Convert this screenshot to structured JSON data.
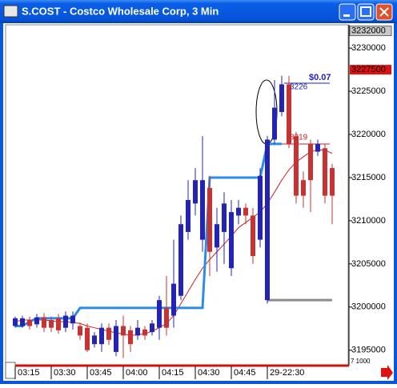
{
  "window": {
    "title": "S.COST - Costco Wholesale Corp, 3 Min"
  },
  "chart_data": {
    "type": "candlestick",
    "categories": [
      "03:15",
      null,
      null,
      null,
      null,
      "03:30",
      null,
      null,
      null,
      null,
      "03:45",
      null,
      null,
      null,
      null,
      "04:00",
      null,
      null,
      null,
      null,
      "04:15",
      null,
      null,
      null,
      null,
      "04:30",
      null,
      null,
      null,
      null,
      "04:45",
      null,
      null,
      null,
      null,
      "29-22:30",
      null,
      null,
      null,
      null,
      null,
      null,
      null,
      null,
      null
    ],
    "candles": [
      [
        3197800,
        3198900,
        3197600,
        3198700
      ],
      [
        3197800,
        3199000,
        3197600,
        3198700
      ],
      [
        3198500,
        3198900,
        3197400,
        3197800
      ],
      [
        3198000,
        3199200,
        3197600,
        3198800
      ],
      [
        3198800,
        3199300,
        3197100,
        3197600
      ],
      [
        3198500,
        3198900,
        3197100,
        3197600
      ],
      [
        3198700,
        3199200,
        3196900,
        3197300
      ],
      [
        3197600,
        3199500,
        3197100,
        3199000
      ],
      [
        3198100,
        3199500,
        3197400,
        3199000
      ],
      [
        3197800,
        3198200,
        3196200,
        3196700
      ],
      [
        3197600,
        3198100,
        3194800,
        3195000
      ],
      [
        3195700,
        3197100,
        3195300,
        3196700
      ],
      [
        3195700,
        3198100,
        3194800,
        3197600
      ],
      [
        3197600,
        3198100,
        3195600,
        3196200
      ],
      [
        3194800,
        3198500,
        3194300,
        3197800
      ],
      [
        3197800,
        3199000,
        3194100,
        3196700
      ],
      [
        3197300,
        3197800,
        3194800,
        3195700
      ],
      [
        3196700,
        3198500,
        3196200,
        3197600
      ],
      [
        3197400,
        3197800,
        3196200,
        3196700
      ],
      [
        3197100,
        3198500,
        3196700,
        3198100
      ],
      [
        3197600,
        3201300,
        3196200,
        3200800
      ],
      [
        3199900,
        3203600,
        3196700,
        3197600
      ],
      [
        3199000,
        3207800,
        3197600,
        3202700
      ],
      [
        3201300,
        3210600,
        3200800,
        3209600
      ],
      [
        3208700,
        3214700,
        3207800,
        3212400
      ],
      [
        3212000,
        3216100,
        3210600,
        3214700
      ],
      [
        3207800,
        3219800,
        3206400,
        3214700
      ],
      [
        3213800,
        3215200,
        3203600,
        3206400
      ],
      [
        3206900,
        3211500,
        3204100,
        3209600
      ],
      [
        3208700,
        3213300,
        3205000,
        3212000
      ],
      [
        3204500,
        3212400,
        3203600,
        3211000
      ],
      [
        3210600,
        3212400,
        3209600,
        3211500
      ],
      [
        3211500,
        3212000,
        3209600,
        3210600
      ],
      [
        3210600,
        3211500,
        3205000,
        3205900
      ],
      [
        3207800,
        3216100,
        3206900,
        3215200
      ],
      [
        3200800,
        3219800,
        3200400,
        3219400
      ],
      [
        3219400,
        3226300,
        3218900,
        3223100
      ],
      [
        3222600,
        3226800,
        3222100,
        3225800
      ],
      [
        3225800,
        3226800,
        3218400,
        3218900
      ],
      [
        3219800,
        3220300,
        3212000,
        3212900
      ],
      [
        3214700,
        3215700,
        3211500,
        3212900
      ],
      [
        3218900,
        3219400,
        3211000,
        3214700
      ],
      [
        3218000,
        3219400,
        3217500,
        3218900
      ],
      [
        3218400,
        3218900,
        3212000,
        3212900
      ],
      [
        3216100,
        3216600,
        3209600,
        3212900
      ]
    ],
    "up_color": "#2424b4",
    "down_color": "#c83232",
    "lines": [
      {
        "color": "#cc2222",
        "width": 1,
        "values": [
          3198300,
          3198500,
          3198500,
          3198500,
          3198500,
          3198400,
          3198300,
          3198300,
          3198200,
          3198100,
          3197800,
          3197600,
          3197400,
          3197200,
          3197000,
          3196900,
          3196700,
          3196800,
          3196900,
          3197200,
          3197600,
          3198100,
          3199000,
          3200400,
          3201800,
          3203200,
          3204500,
          3205500,
          3206400,
          3207300,
          3208200,
          3209200,
          3209800,
          3210400,
          3211000,
          3212000,
          3213300,
          3214700,
          3215900,
          3216800,
          3217400,
          3218000,
          3218200,
          3218200,
          3217800
        ]
      },
      {
        "color": "#2a8ce8",
        "width": 3,
        "values": [
          3197800,
          3197800,
          3198300,
          3198700,
          3198700,
          3198700,
          3198700,
          3198700,
          3198700,
          3199900,
          3199900,
          3199900,
          3199900,
          3199900,
          3199900,
          3199900,
          3199900,
          3199900,
          3199900,
          3199900,
          3199900,
          3199900,
          3199900,
          3199900,
          3199900,
          3199900,
          3199900,
          3215000,
          3215000,
          3215000,
          3215000,
          3215000,
          3215000,
          3215000,
          3215000,
          3218900,
          3218900,
          3218900,
          null,
          null,
          null,
          null,
          null,
          null,
          null
        ]
      },
      {
        "color": "#8c8c8c",
        "width": 3,
        "values": [
          null,
          null,
          null,
          null,
          null,
          null,
          null,
          null,
          null,
          null,
          null,
          null,
          null,
          null,
          null,
          null,
          null,
          null,
          null,
          null,
          null,
          null,
          null,
          null,
          null,
          null,
          null,
          null,
          null,
          null,
          null,
          null,
          null,
          null,
          null,
          3200800,
          3200800,
          3200800,
          3200800,
          3200800,
          3200800,
          3200800,
          3200800,
          3200800,
          3200800
        ]
      }
    ],
    "ylim": [
      3193400,
      3232700
    ],
    "yticks": [
      3195000,
      3200000,
      3205000,
      3210000,
      3215000,
      3220000,
      3225000,
      3230000
    ],
    "top_label": 3232000,
    "last_price": 3227500,
    "last_price_color": "#e01010",
    "annotations": [
      {
        "text": "$0.07",
        "color": "#2020c0"
      },
      {
        "text": "3226",
        "color": "#2020c0"
      },
      {
        "text": "3219",
        "color": "#d02020"
      }
    ],
    "footer_note": "7 1000"
  }
}
